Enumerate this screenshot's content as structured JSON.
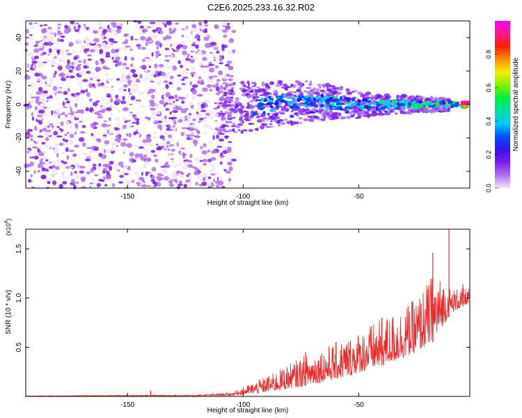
{
  "title": "C2E6.2025.233.16.32.R02",
  "chart_data": [
    {
      "type": "heatmap",
      "name": "spectrogram",
      "xlabel": "Height of straight line (km)",
      "ylabel": "Frequency (Hz)",
      "xlim": [
        -194,
        -2
      ],
      "ylim": [
        -50,
        50
      ],
      "xticks": [
        -150,
        -100,
        -50
      ],
      "yticks": [
        -40,
        -20,
        0,
        20,
        40
      ],
      "colorbar": {
        "label": "Normalized spectral amplitude",
        "range": [
          0,
          1
        ],
        "ticks": [
          "0.0",
          "0.2",
          "0.4",
          "0.6",
          "0.8"
        ],
        "tick_values": [
          0.0,
          0.2,
          0.4,
          0.6,
          0.8
        ],
        "colors": [
          "#f2e4f6",
          "#b070f0",
          "#7a1ee8",
          "#3a10f0",
          "#0050ff",
          "#00c8ff",
          "#00e0a0",
          "#00f040",
          "#80f000",
          "#f0f000",
          "#ff9000",
          "#ff2000",
          "#ff1a88",
          "#ff00ff"
        ]
      },
      "ridge": {
        "x": [
          -110,
          -90,
          -70,
          -50,
          -30,
          -10,
          -2
        ],
        "freq": [
          -3,
          0,
          2,
          0,
          0,
          0,
          -1
        ]
      }
    },
    {
      "type": "line",
      "name": "snr",
      "xlabel": "Height of straight line (km)",
      "ylabel": "SNR (10 * v/v)",
      "multiplier_label": "(x10",
      "multiplier_exp": "4",
      "xlim": [
        -194,
        -2
      ],
      "ylim": [
        0,
        1.7
      ],
      "xticks": [
        -150,
        -100,
        -50
      ],
      "yticks": [
        0.5,
        1.0,
        1.5
      ],
      "ytick_labels": [
        "0.5",
        "1.0",
        "1.5"
      ],
      "color": "#e8282a",
      "envelope": {
        "x": [
          -194,
          -140,
          -120,
          -105,
          -95,
          -85,
          -75,
          -65,
          -55,
          -45,
          -35,
          -25,
          -18,
          -14,
          -10,
          -2
        ],
        "base": [
          0.002,
          0.005,
          0.005,
          0.01,
          0.03,
          0.06,
          0.1,
          0.15,
          0.2,
          0.28,
          0.35,
          0.45,
          0.55,
          0.7,
          0.85,
          0.95
        ],
        "spread": [
          0.004,
          0.01,
          0.01,
          0.03,
          0.12,
          0.2,
          0.3,
          0.35,
          0.4,
          0.45,
          0.5,
          0.55,
          0.7,
          0.5,
          0.25,
          0.15
        ]
      },
      "peaks": [
        {
          "x": -140,
          "y": 0.06
        },
        {
          "x": -73,
          "y": 0.45
        },
        {
          "x": -40,
          "y": 0.8
        },
        {
          "x": -18,
          "y": 1.46
        },
        {
          "x": -11,
          "y": 1.7
        },
        {
          "x": -5,
          "y": 1.14
        }
      ]
    }
  ]
}
